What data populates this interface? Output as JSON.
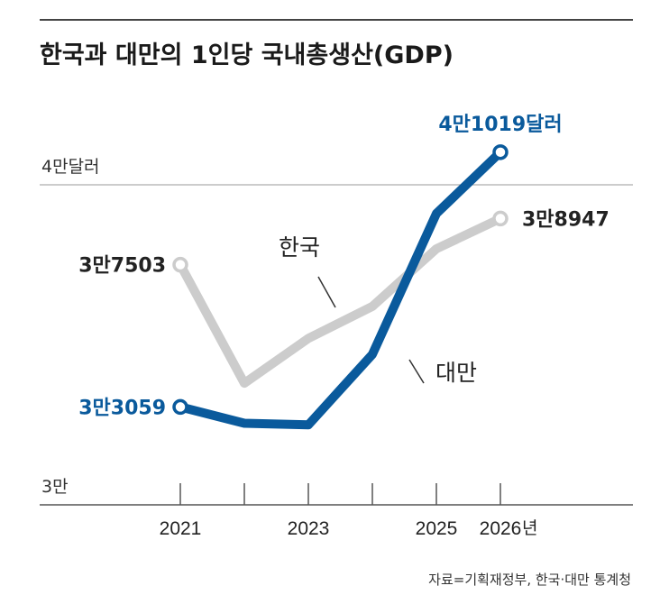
{
  "chart_data": {
    "type": "line",
    "title": "한국과 대만의 1인당 국내총생산(GDP)",
    "x": [
      2021,
      2022,
      2023,
      2024,
      2025,
      2026
    ],
    "xtick_labels": [
      "2021",
      "",
      "2023",
      "",
      "2025",
      "2026"
    ],
    "xtick_suffix": "년",
    "y_gridlines": [
      {
        "value": 40000,
        "label": "4만달러"
      },
      {
        "value": 30000,
        "label": "3만"
      }
    ],
    "ylim": [
      30000,
      42500
    ],
    "series": [
      {
        "name": "한국",
        "color": "#cccccc",
        "values": [
          37503,
          33800,
          35200,
          36200,
          38000,
          38947
        ],
        "start_label": "3만7503",
        "end_label": "3만8947",
        "label_color": "#222222"
      },
      {
        "name": "대만",
        "color": "#0a5a9c",
        "values": [
          33059,
          32550,
          32500,
          34700,
          39100,
          41019
        ],
        "start_label": "3만3059",
        "end_label": "4만1019달러",
        "label_color": "#0a5a9c"
      }
    ],
    "source": "자료=기획재정부, 한국·대만 통계청"
  }
}
